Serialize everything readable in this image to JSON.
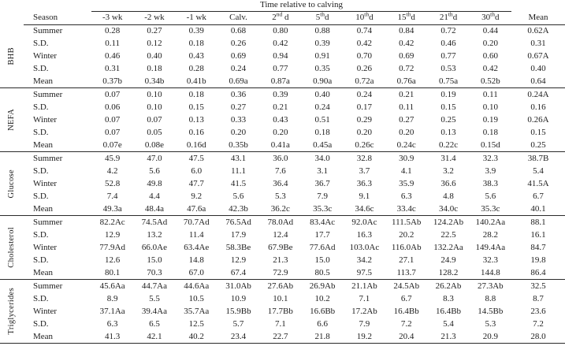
{
  "colors": {
    "background": "#ffffff",
    "text": "#1d1d1d",
    "line": "#2a2a2a"
  },
  "table": {
    "spanner_title": "Time relative to calving",
    "columns": [
      {
        "pre": "Season"
      },
      {
        "pre": "-3 wk"
      },
      {
        "pre": "-2 wk"
      },
      {
        "pre": "-1 wk"
      },
      {
        "pre": "Calv."
      },
      {
        "pre": "2",
        "sup": "nd",
        "post": " d"
      },
      {
        "pre": "5",
        "sup": "th",
        "post": "d"
      },
      {
        "pre": "10",
        "sup": "th",
        "post": "d"
      },
      {
        "pre": "15",
        "sup": "th",
        "post": "d"
      },
      {
        "pre": "21",
        "sup": "th",
        "post": "d"
      },
      {
        "pre": "30",
        "sup": "th",
        "post": "d"
      },
      {
        "pre": "Mean"
      }
    ],
    "groups": [
      {
        "label": "BHB",
        "rows": [
          {
            "label": "Summer",
            "cells": [
              "0.28",
              "0.27",
              "0.39",
              "0.68",
              "0.80",
              "0.88",
              "0.74",
              "0.84",
              "0.72",
              "0.44",
              "0.62A"
            ]
          },
          {
            "label": "S.D.",
            "cells": [
              "0.11",
              "0.12",
              "0.18",
              "0.26",
              "0.42",
              "0.39",
              "0.42",
              "0.42",
              "0.46",
              "0.20",
              "0.31"
            ]
          },
          {
            "label": "Winter",
            "cells": [
              "0.46",
              "0.40",
              "0.43",
              "0.69",
              "0.94",
              "0.91",
              "0.70",
              "0.69",
              "0.77",
              "0.60",
              "0.67A"
            ]
          },
          {
            "label": "S.D.",
            "cells": [
              "0.31",
              "0.18",
              "0.28",
              "0.24",
              "0.77",
              "0.35",
              "0.26",
              "0.72",
              "0.53",
              "0.42",
              "0.40"
            ]
          },
          {
            "label": "Mean",
            "cells": [
              "0.37b",
              "0.34b",
              "0.41b",
              "0.69a",
              "0.87a",
              "0.90a",
              "0.72a",
              "0.76a",
              "0.75a",
              "0.52b",
              "0.64"
            ]
          }
        ]
      },
      {
        "label": "NEFA",
        "rows": [
          {
            "label": "Summer",
            "cells": [
              "0.07",
              "0.10",
              "0.18",
              "0.36",
              "0.39",
              "0.40",
              "0.24",
              "0.21",
              "0.19",
              "0.11",
              "0.24A"
            ]
          },
          {
            "label": "S.D.",
            "cells": [
              "0.06",
              "0.10",
              "0.15",
              "0.27",
              "0.21",
              "0.24",
              "0.17",
              "0.11",
              "0.15",
              "0.10",
              "0.16"
            ]
          },
          {
            "label": "Winter",
            "cells": [
              "0.07",
              "0.07",
              "0.13",
              "0.33",
              "0.43",
              "0.51",
              "0.29",
              "0.27",
              "0.25",
              "0.19",
              "0.26A"
            ]
          },
          {
            "label": "S.D.",
            "cells": [
              "0.07",
              "0.05",
              "0.16",
              "0.20",
              "0.20",
              "0.18",
              "0.20",
              "0.20",
              "0.13",
              "0.18",
              "0.15"
            ]
          },
          {
            "label": "Mean",
            "cells": [
              "0.07e",
              "0.08e",
              "0.16d",
              "0.35b",
              "0.41a",
              "0.45a",
              "0.26c",
              "0.24c",
              "0.22c",
              "0.15d",
              "0.25"
            ]
          }
        ]
      },
      {
        "label": "Glucose",
        "rows": [
          {
            "label": "Summer",
            "cells": [
              "45.9",
              "47.0",
              "47.5",
              "43.1",
              "36.0",
              "34.0",
              "32.8",
              "30.9",
              "31.4",
              "32.3",
              "38.7B"
            ]
          },
          {
            "label": "S.D.",
            "cells": [
              "4.2",
              "5.6",
              "6.0",
              "11.1",
              "7.6",
              "3.1",
              "3.7",
              "4.1",
              "3.2",
              "3.9",
              "5.4"
            ]
          },
          {
            "label": "Winter",
            "cells": [
              "52.8",
              "49.8",
              "47.7",
              "41.5",
              "36.4",
              "36.7",
              "36.3",
              "35.9",
              "36.6",
              "38.3",
              "41.5A"
            ]
          },
          {
            "label": "S.D.",
            "cells": [
              "7.4",
              "4.4",
              "9.2",
              "5.6",
              "5.3",
              "7.9",
              "9.1",
              "6.3",
              "4.8",
              "5.6",
              "6.7"
            ]
          },
          {
            "label": "Mean",
            "cells": [
              "49.3a",
              "48.4a",
              "47.6a",
              "42.3b",
              "36.2c",
              "35.3c",
              "34.6c",
              "33.4c",
              "34.0c",
              "35.3c",
              "40.1"
            ]
          }
        ]
      },
      {
        "label": "Cholesterol",
        "rows": [
          {
            "label": "Summer",
            "cells": [
              "82.2Ac",
              "74.5Ad",
              "70.7Ad",
              "76.5Ad",
              "78.0Ad",
              "83.4Ac",
              "92.0Ac",
              "111.5Ab",
              "124.2Ab",
              "140.2Aa",
              "88.1"
            ]
          },
          {
            "label": "S.D.",
            "cells": [
              "12.9",
              "13.2",
              "11.4",
              "17.9",
              "12.4",
              "17.7",
              "16.3",
              "20.2",
              "22.5",
              "28.2",
              "16.1"
            ]
          },
          {
            "label": "Winter",
            "cells": [
              "77.9Ad",
              "66.0Ae",
              "63.4Ae",
              "58.3Be",
              "67.9Be",
              "77.6Ad",
              "103.0Ac",
              "116.0Ab",
              "132.2Aa",
              "149.4Aa",
              "84.7"
            ]
          },
          {
            "label": "S.D.",
            "cells": [
              "12.6",
              "15.0",
              "14.8",
              "12.9",
              "21.3",
              "15.0",
              "34.2",
              "27.1",
              "24.9",
              "32.3",
              "19.8"
            ]
          },
          {
            "label": "Mean",
            "cells": [
              "80.1",
              "70.3",
              "67.0",
              "67.4",
              "72.9",
              "80.5",
              "97.5",
              "113.7",
              "128.2",
              "144.8",
              "86.4"
            ]
          }
        ]
      },
      {
        "label": "Triglycerides",
        "rows": [
          {
            "label": "Summer",
            "cells": [
              "45.6Aa",
              "44.7Aa",
              "44.6Aa",
              "31.0Ab",
              "27.6Ab",
              "26.9Ab",
              "21.1Ab",
              "24.5Ab",
              "26.2Ab",
              "27.3Ab",
              "32.5"
            ]
          },
          {
            "label": "S.D.",
            "cells": [
              "8.9",
              "5.5",
              "10.5",
              "10.9",
              "10.1",
              "10.2",
              "7.1",
              "6.7",
              "8.3",
              "8.8",
              "8.7"
            ]
          },
          {
            "label": "Winter",
            "cells": [
              "37.1Aa",
              "39.4Aa",
              "35.7Aa",
              "15.9Bb",
              "17.7Bb",
              "16.6Bb",
              "17.2Ab",
              "16.4Bb",
              "16.4Bb",
              "14.5Bb",
              "23.6"
            ]
          },
          {
            "label": "S.D.",
            "cells": [
              "6.3",
              "6.5",
              "12.5",
              "5.7",
              "7.1",
              "6.6",
              "7.9",
              "7.2",
              "5.4",
              "5.3",
              "7.2"
            ]
          },
          {
            "label": "Mean",
            "cells": [
              "41.3",
              "42.1",
              "40.2",
              "23.4",
              "22.7",
              "21.8",
              "19.2",
              "20.4",
              "21.3",
              "20.9",
              "28.0"
            ]
          }
        ]
      }
    ]
  }
}
